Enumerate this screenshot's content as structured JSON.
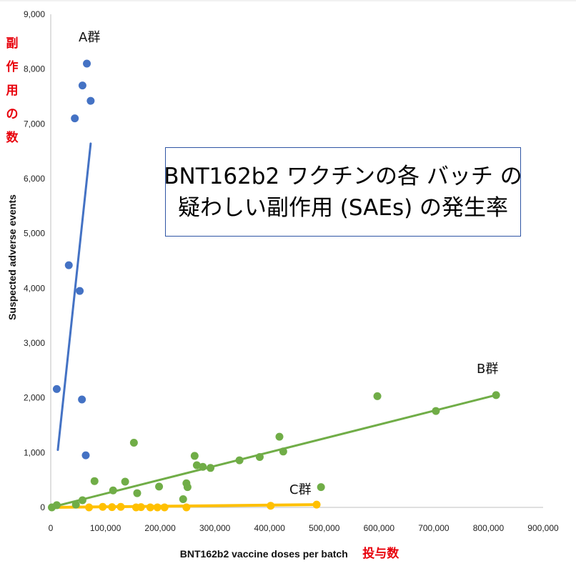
{
  "title_lines": [
    "BNT162b2 ワクチンの各 バッチ の",
    "疑わしい副作用 (SAEs) の発生率"
  ],
  "x_axis": {
    "label": "BNT162b2 vaccine doses per batch",
    "label_jp": "投与数",
    "ticks": [
      "0",
      "100,000",
      "200,000",
      "300,000",
      "400,000",
      "500,000",
      "600,000",
      "700,000",
      "800,000",
      "900,000"
    ]
  },
  "y_axis": {
    "label": "Suspected adverse events",
    "label_jp": "副作用の数",
    "ticks": [
      "0",
      "1,000",
      "2,000",
      "3,000",
      "4,000",
      "5,000",
      "6,000",
      "7,000",
      "8,000",
      "9,000"
    ]
  },
  "chart_data": {
    "type": "scatter",
    "xlim": [
      0,
      900000
    ],
    "ylim": [
      0,
      9000
    ],
    "grid": false,
    "series": [
      {
        "name": "A群",
        "color": "#4472c4",
        "points": [
          [
            11000,
            2160
          ],
          [
            33000,
            4420
          ],
          [
            44000,
            7100
          ],
          [
            53000,
            3950
          ],
          [
            57000,
            1970
          ],
          [
            58000,
            7700
          ],
          [
            64000,
            950
          ],
          [
            66000,
            8100
          ],
          [
            73000,
            7420
          ]
        ],
        "trend": [
          [
            13000,
            1050
          ],
          [
            73000,
            6640
          ]
        ]
      },
      {
        "name": "B群",
        "color": "#70ad47",
        "points": [
          [
            2000,
            0
          ],
          [
            11000,
            40
          ],
          [
            46000,
            50
          ],
          [
            58000,
            130
          ],
          [
            80000,
            480
          ],
          [
            114000,
            310
          ],
          [
            136000,
            470
          ],
          [
            152000,
            1180
          ],
          [
            158000,
            260
          ],
          [
            198000,
            380
          ],
          [
            242000,
            150
          ],
          [
            248000,
            440
          ],
          [
            250000,
            370
          ],
          [
            263000,
            940
          ],
          [
            267000,
            770
          ],
          [
            278000,
            740
          ],
          [
            292000,
            720
          ],
          [
            345000,
            860
          ],
          [
            382000,
            920
          ],
          [
            418000,
            1290
          ],
          [
            425000,
            1020
          ],
          [
            494000,
            370
          ],
          [
            597000,
            2030
          ],
          [
            704000,
            1760
          ],
          [
            814000,
            2050
          ]
        ],
        "trend": [
          [
            0,
            0
          ],
          [
            814000,
            2050
          ]
        ]
      },
      {
        "name": "C群",
        "color": "#ffc000",
        "points": [
          [
            70000,
            0
          ],
          [
            95000,
            10
          ],
          [
            112000,
            5
          ],
          [
            128000,
            10
          ],
          [
            156000,
            0
          ],
          [
            165000,
            5
          ],
          [
            182000,
            0
          ],
          [
            195000,
            0
          ],
          [
            208000,
            0
          ],
          [
            248000,
            0
          ],
          [
            402000,
            30
          ],
          [
            486000,
            50
          ]
        ],
        "trend": [
          [
            0,
            0
          ],
          [
            486000,
            50
          ]
        ]
      }
    ]
  }
}
